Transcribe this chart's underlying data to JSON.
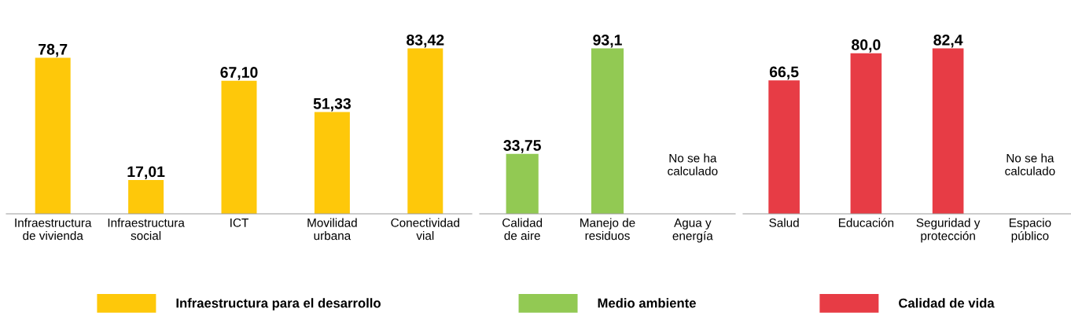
{
  "chart_data": [
    {
      "type": "bar",
      "categories": [
        "Infraestructura\nde vivienda",
        "Infraestructura\nsocial",
        "ICT",
        "Movilidad\nurbana",
        "Conectividad\nvial"
      ],
      "legend": "bottom",
      "series": [
        {
          "name": "Infraestructura para el desarrollo",
          "color": "#fec80a",
          "values": [
            78.7,
            17.01,
            67.1,
            51.33,
            83.42
          ],
          "value_labels": [
            "78,7",
            "17,01",
            "67,10",
            "51,33",
            "83,42"
          ]
        }
      ]
    },
    {
      "type": "bar",
      "categories": [
        "Calidad\nde aire",
        "Manejo de\nresiduos",
        "Agua y\nenergía"
      ],
      "legend": "bottom",
      "series": [
        {
          "name": "Medio ambiente",
          "color": "#92c953",
          "values": [
            33.75,
            93.1,
            null
          ],
          "value_labels": [
            "33,75",
            "93,1",
            "No se ha\ncalculado"
          ]
        }
      ]
    },
    {
      "type": "bar",
      "categories": [
        "Salud",
        "Educación",
        "Seguridad y\nprotección",
        "Espacio\npúblico"
      ],
      "legend": "bottom",
      "series": [
        {
          "name": "Calidad de vida",
          "color": "#e73c45",
          "values": [
            66.5,
            80.0,
            82.4,
            null
          ],
          "value_labels": [
            "66,5",
            "80,0",
            "82,4",
            "No se ha\ncalculado"
          ]
        }
      ]
    }
  ]
}
